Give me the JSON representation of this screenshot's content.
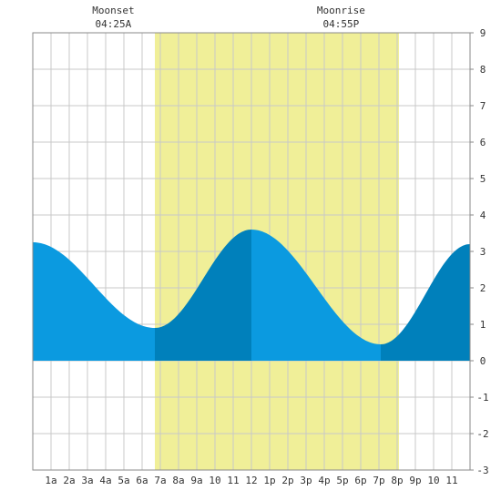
{
  "chart_data": {
    "type": "area",
    "x_unit": "hour of day",
    "xlim": [
      0,
      24
    ],
    "ylim": [
      -3,
      9
    ],
    "y_ticks": [
      -3,
      -2,
      -1,
      0,
      1,
      2,
      3,
      4,
      5,
      6,
      7,
      8,
      9
    ],
    "y_tick_labels": [
      "-3",
      "-2",
      "-1",
      "0",
      "1",
      "2",
      "3",
      "4",
      "5",
      "6",
      "7",
      "8",
      "9"
    ],
    "x_ticks": [
      1,
      2,
      3,
      4,
      5,
      6,
      7,
      8,
      9,
      10,
      11,
      12,
      13,
      14,
      15,
      16,
      17,
      18,
      19,
      20,
      21,
      22,
      23
    ],
    "x_tick_labels": [
      "1a",
      "2a",
      "3a",
      "4a",
      "5a",
      "6a",
      "7a",
      "8a",
      "9a",
      "10",
      "11",
      "12",
      "1p",
      "2p",
      "3p",
      "4p",
      "5p",
      "6p",
      "7p",
      "8p",
      "9p",
      "10",
      "11"
    ],
    "daylight": {
      "start": 6.7,
      "end": 20.1
    },
    "tide_extremes": [
      {
        "x": 0.0,
        "y": 3.25
      },
      {
        "x": 6.7,
        "y": 0.9
      },
      {
        "x": 12.0,
        "y": 3.6
      },
      {
        "x": 19.1,
        "y": 0.45
      },
      {
        "x": 24.0,
        "y": 3.2
      }
    ],
    "shade_periods": [
      {
        "start": 0.0,
        "end": 6.7,
        "shade": "light"
      },
      {
        "start": 6.7,
        "end": 12.0,
        "shade": "dark"
      },
      {
        "start": 12.0,
        "end": 19.1,
        "shade": "light"
      },
      {
        "start": 19.1,
        "end": 24.0,
        "shade": "dark"
      }
    ],
    "events": [
      {
        "label": "Moonset",
        "time": "04:25A",
        "x": 4.42
      },
      {
        "label": "Moonrise",
        "time": "04:55P",
        "x": 16.92
      }
    ]
  },
  "colors": {
    "daylight": "#f0ef98",
    "tide_light": "#0b9ae0",
    "tide_dark": "#0080bb",
    "grid": "#c8c8c8",
    "frame": "#8a8a8a",
    "text": "#333333"
  }
}
